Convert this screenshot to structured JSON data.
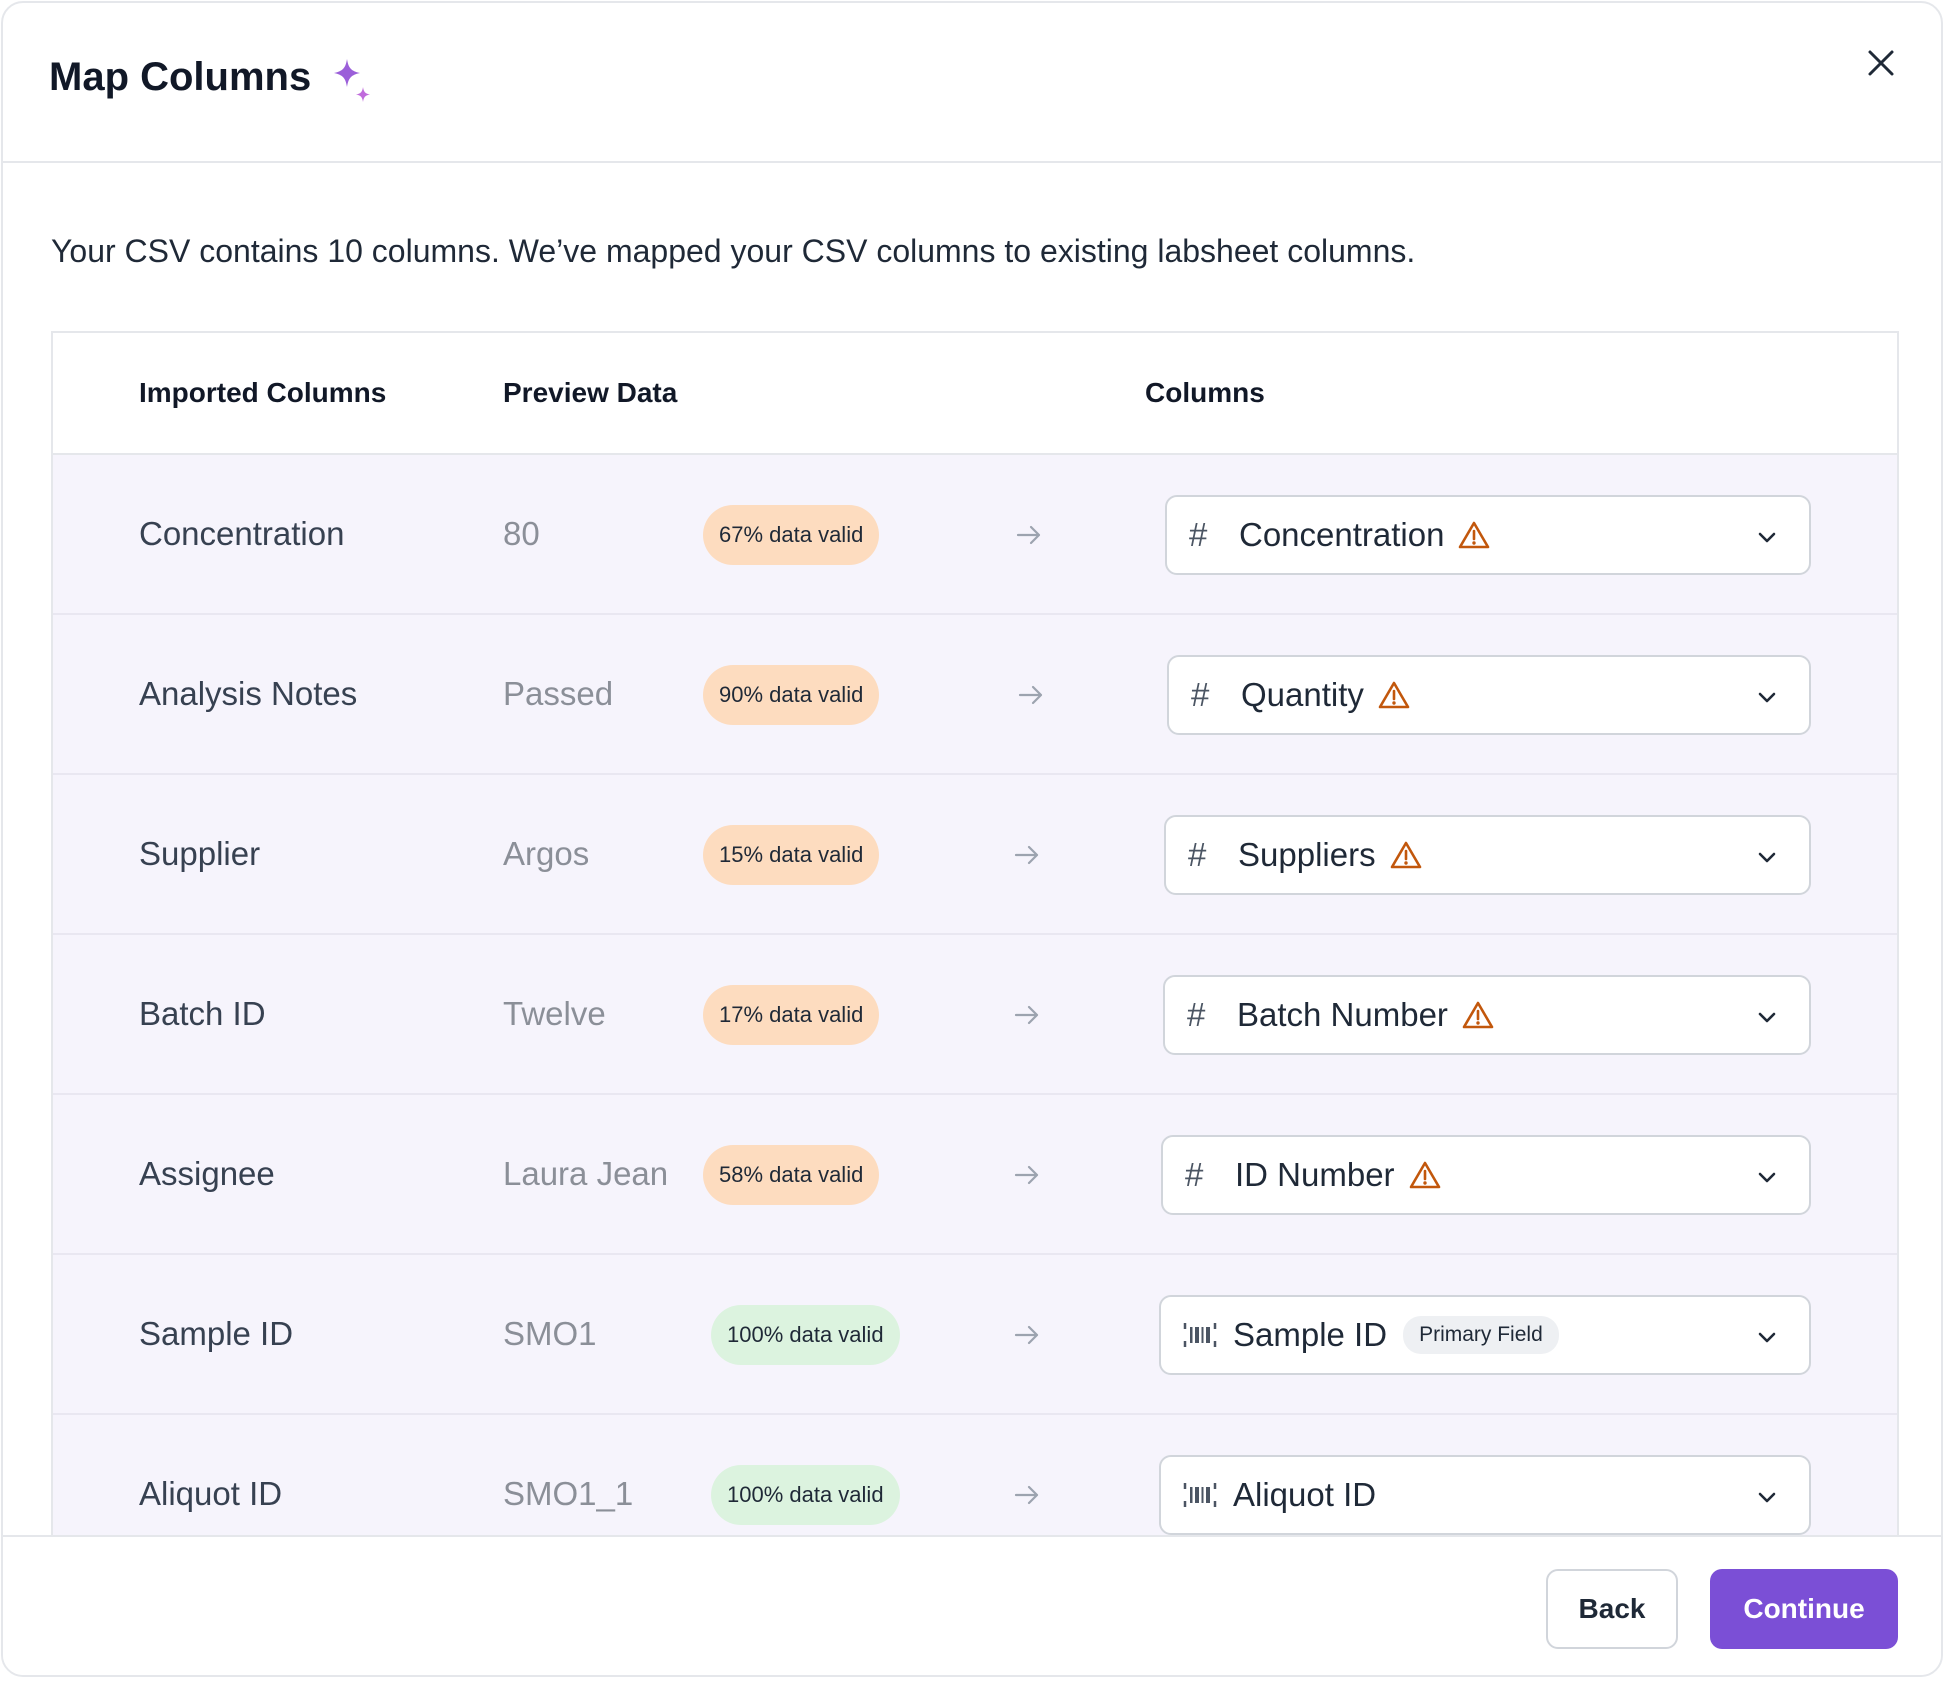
{
  "dialog": {
    "title": "Map Columns",
    "description": "Your CSV contains 10 columns. We’ve mapped your CSV columns to existing labsheet columns."
  },
  "table": {
    "headers": {
      "imported": "Imported Columns",
      "preview": "Preview Data",
      "columns": "Columns"
    },
    "rows": [
      {
        "name": "Concentration",
        "preview": "80",
        "valid": "67% data valid",
        "status": "warn",
        "target": "Concentration",
        "target_icon": "hash-icon",
        "warning": true,
        "pill": ""
      },
      {
        "name": "Analysis Notes",
        "preview": "Passed",
        "valid": "90% data valid",
        "status": "warn",
        "target": "Quantity",
        "target_icon": "hash-icon",
        "warning": true,
        "pill": ""
      },
      {
        "name": "Supplier",
        "preview": "Argos",
        "valid": "15% data valid",
        "status": "warn",
        "target": "Suppliers",
        "target_icon": "hash-icon",
        "warning": true,
        "pill": ""
      },
      {
        "name": "Batch ID",
        "preview": "Twelve",
        "valid": "17% data valid",
        "status": "warn",
        "target": "Batch Number",
        "target_icon": "hash-icon",
        "warning": true,
        "pill": ""
      },
      {
        "name": "Assignee",
        "preview": "Laura Jean",
        "valid": "58% data valid",
        "status": "warn",
        "target": "ID Number",
        "target_icon": "hash-icon",
        "warning": true,
        "pill": ""
      },
      {
        "name": "Sample ID",
        "preview": "SMO1",
        "valid": "100% data valid",
        "status": "ok",
        "target": "Sample ID",
        "target_icon": "barcode-icon",
        "warning": false,
        "pill": "Primary Field"
      },
      {
        "name": "Aliquot ID",
        "preview": "SMO1_1",
        "valid": "100% data valid",
        "status": "ok",
        "target": "Aliquot ID",
        "target_icon": "barcode-icon",
        "warning": false,
        "pill": ""
      }
    ]
  },
  "footer": {
    "back_label": "Back",
    "continue_label": "Continue"
  },
  "colors": {
    "accent": "#7b4fd6",
    "warning_badge": "#fddcbf",
    "ok_badge": "#dcf3df",
    "warning_icon": "#c2570c",
    "row_background": "#f6f4fc"
  }
}
